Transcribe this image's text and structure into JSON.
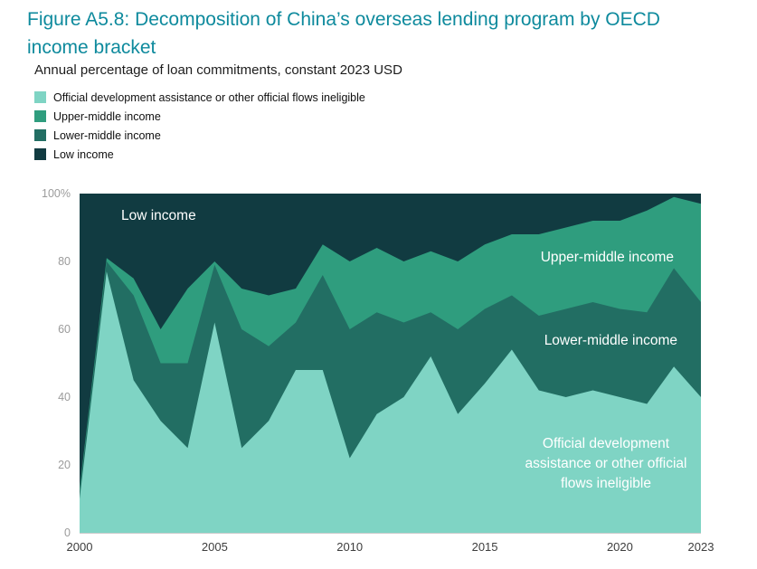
{
  "header": {
    "title": "Figure A5.8: Decomposition of China’s overseas lending program by OECD income bracket",
    "subtitle": "Annual percentage of loan commitments, constant 2023 USD"
  },
  "colors": {
    "accent": "#0e8a9d",
    "axis_label": "#9b9b9b",
    "x_label": "#3d3d3d",
    "annotation_text": "#ffffff"
  },
  "legend": {
    "items": [
      {
        "label": "Official development assistance or other official flows ineligible",
        "series_index": 0
      },
      {
        "label": "Upper-middle income",
        "series_index": 2
      },
      {
        "label": "Lower-middle income",
        "series_index": 1
      },
      {
        "label": "Low income",
        "series_index": 3
      }
    ]
  },
  "annotations": {
    "low_income": "Low income",
    "upper_middle": "Upper-middle income",
    "lower_middle": "Lower-middle income",
    "oda": "Official development assistance or other official flows ineligible"
  },
  "chart_data": {
    "type": "area",
    "stacked": true,
    "unit": "percent of loan commitments",
    "title": "Decomposition of China’s overseas lending program by OECD income bracket",
    "xlabel": "",
    "ylabel": "",
    "ylim": [
      0,
      100
    ],
    "grid": false,
    "legend_position": "top-left",
    "x": [
      2000,
      2001,
      2002,
      2003,
      2004,
      2005,
      2006,
      2007,
      2008,
      2009,
      2010,
      2011,
      2012,
      2013,
      2014,
      2015,
      2016,
      2017,
      2018,
      2019,
      2020,
      2021,
      2022,
      2023
    ],
    "x_ticks": [
      "2000",
      "2005",
      "2010",
      "2015",
      "2020",
      "2023"
    ],
    "y_ticks": [
      "100%",
      "80",
      "60",
      "40",
      "20",
      "0"
    ],
    "series": [
      {
        "name": "Official development assistance or other official flows ineligible",
        "color": "#7fd4c4",
        "values": [
          10,
          77,
          45,
          33,
          25,
          62,
          25,
          33,
          48,
          48,
          22,
          35,
          40,
          52,
          35,
          44,
          54,
          42,
          40,
          42,
          40,
          38,
          49,
          40
        ]
      },
      {
        "name": "Lower-middle income",
        "color": "#226e63",
        "values": [
          2,
          3,
          25,
          17,
          25,
          17,
          35,
          22,
          14,
          28,
          38,
          30,
          22,
          13,
          25,
          22,
          16,
          22,
          26,
          26,
          26,
          27,
          29,
          28
        ]
      },
      {
        "name": "Upper-middle income",
        "color": "#2f9d7e",
        "values": [
          1,
          1,
          5,
          10,
          22,
          1,
          12,
          15,
          10,
          9,
          20,
          19,
          18,
          18,
          20,
          19,
          18,
          24,
          24,
          24,
          26,
          30,
          21,
          29
        ]
      },
      {
        "name": "Low income",
        "color": "#113b41",
        "values": [
          87,
          19,
          25,
          40,
          28,
          20,
          28,
          30,
          28,
          15,
          20,
          16,
          20,
          17,
          20,
          15,
          12,
          12,
          10,
          8,
          8,
          5,
          1,
          3
        ]
      }
    ]
  }
}
